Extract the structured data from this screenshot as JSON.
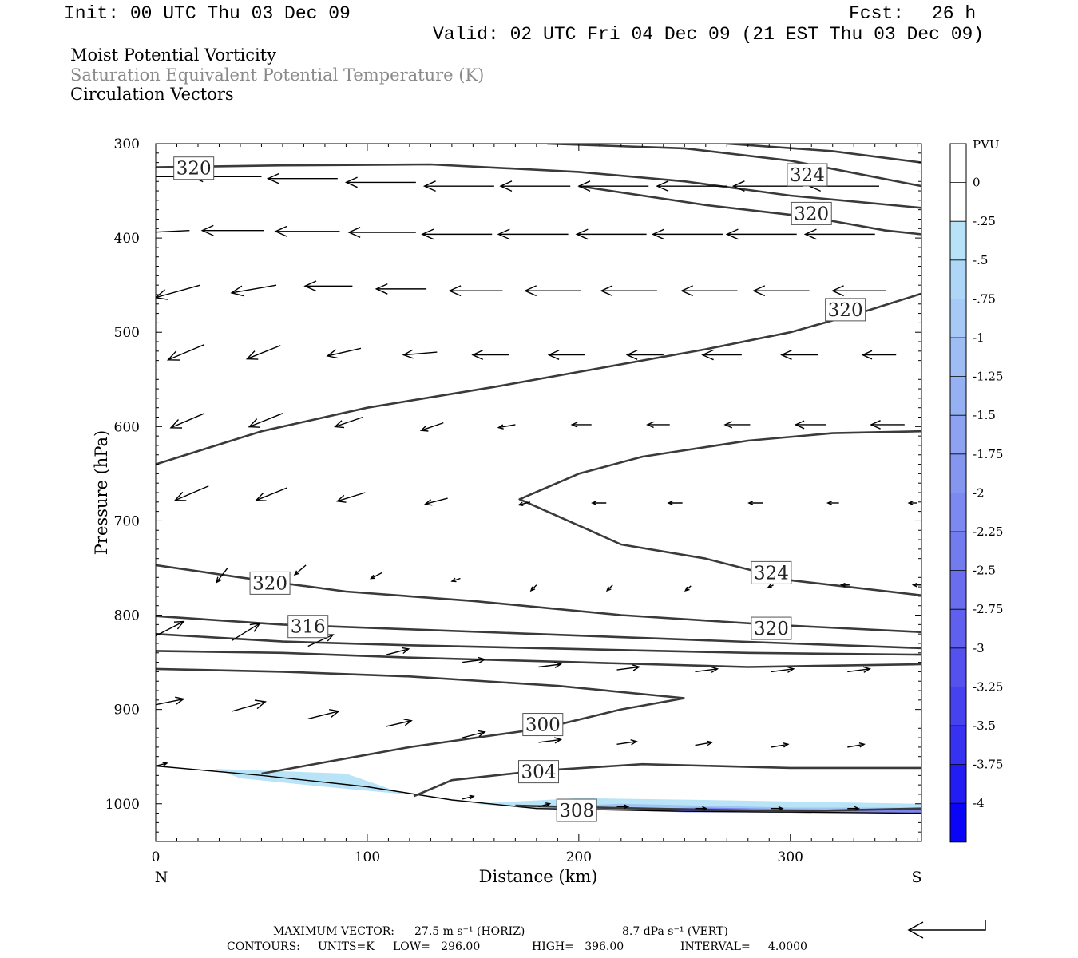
{
  "header": {
    "init": "Init: 00 UTC Thu 03 Dec 09",
    "fcst_label": "Fcst:",
    "fcst_value": "26 h",
    "valid": "Valid: 02 UTC Fri 04 Dec 09 (21 EST Thu 03 Dec 09)"
  },
  "titles": {
    "line1": "Moist Potential Vorticity",
    "line2": "Saturation Equivalent Potential Temperature (K)",
    "line3": "Circulation Vectors"
  },
  "colors": {
    "contour": "#3a3a3a",
    "pv_light": "#b9e4f7",
    "pv_mid": "#9fc4f2",
    "pv_dark": "#7d86ee",
    "frame": "#000000",
    "subtitle_gray": "#8a8a8a"
  },
  "chart_data": {
    "type": "cross-section",
    "xlabel": "Distance (km)",
    "ylabel": "Pressure (hPa)",
    "xlim": [
      0,
      362
    ],
    "ylim": [
      1040,
      300
    ],
    "y_reversed": true,
    "xticks": [
      "0",
      "100",
      "200",
      "300"
    ],
    "xtick_values": [
      0,
      100,
      200,
      300
    ],
    "yticks": [
      "300",
      "400",
      "500",
      "600",
      "700",
      "800",
      "900",
      "1000"
    ],
    "ytick_values": [
      300,
      400,
      500,
      600,
      700,
      800,
      900,
      1000
    ],
    "left_end_label": "N",
    "right_end_label": "S",
    "colorbar": {
      "title": "PVU",
      "labels": [
        "0",
        "-.25",
        "-.5",
        "-.75",
        "-1",
        "-1.25",
        "-1.5",
        "-1.75",
        "-2",
        "-2.25",
        "-2.5",
        "-2.75",
        "-3",
        "-3.25",
        "-3.5",
        "-3.75",
        "-4"
      ],
      "colors": [
        "#ffffff",
        "#ffffff",
        "#b8e2f7",
        "#aed6f6",
        "#a6caf5",
        "#9dbdf4",
        "#95b0f3",
        "#8da3f2",
        "#8596f1",
        "#7c89f0",
        "#737cef",
        "#6a6eee",
        "#6060ee",
        "#5451ef",
        "#4742f0",
        "#3731f1",
        "#221df4",
        "#0a04f8"
      ]
    },
    "terrain": [
      [
        0,
        960
      ],
      [
        50,
        970
      ],
      [
        100,
        982
      ],
      [
        140,
        996
      ],
      [
        180,
        1005
      ],
      [
        250,
        1008
      ],
      [
        362,
        1010
      ]
    ],
    "contours": [
      {
        "label": "320",
        "label_at": [
          18,
          326
        ],
        "points": [
          [
            0,
            325
          ],
          [
            60,
            323
          ],
          [
            130,
            322
          ],
          [
            200,
            330
          ],
          [
            250,
            340
          ],
          [
            300,
            355
          ],
          [
            362,
            368
          ]
        ]
      },
      {
        "label": "324",
        "label_at": [
          308,
          333
        ],
        "points": [
          [
            185,
            300
          ],
          [
            250,
            305
          ],
          [
            300,
            318
          ],
          [
            362,
            345
          ]
        ]
      },
      {
        "label": "",
        "points": [
          [
            270,
            300
          ],
          [
            320,
            308
          ],
          [
            362,
            320
          ]
        ]
      },
      {
        "label": "320",
        "label_at": [
          310,
          374
        ],
        "points": [
          [
            200,
            345
          ],
          [
            260,
            365
          ],
          [
            310,
            378
          ],
          [
            345,
            392
          ],
          [
            362,
            396
          ]
        ]
      },
      {
        "label": "320",
        "label_at": [
          326,
          476
        ],
        "points": [
          [
            0,
            640
          ],
          [
            50,
            605
          ],
          [
            100,
            580
          ],
          [
            160,
            558
          ],
          [
            210,
            538
          ],
          [
            260,
            518
          ],
          [
            300,
            500
          ],
          [
            335,
            478
          ],
          [
            362,
            459
          ]
        ]
      },
      {
        "label": "324",
        "label_at": [
          291,
          755
        ],
        "points": [
          [
            362,
            605
          ],
          [
            320,
            607
          ],
          [
            280,
            615
          ],
          [
            230,
            632
          ],
          [
            200,
            650
          ],
          [
            172,
            677
          ],
          [
            205,
            710
          ],
          [
            220,
            725
          ],
          [
            260,
            740
          ],
          [
            300,
            763
          ],
          [
            362,
            779
          ]
        ]
      },
      {
        "label": "320",
        "label_at": [
          54,
          766
        ],
        "points": [
          [
            0,
            747
          ],
          [
            40,
            760
          ],
          [
            90,
            775
          ],
          [
            150,
            785
          ],
          [
            220,
            800
          ],
          [
            290,
            810
          ],
          [
            362,
            818
          ]
        ]
      },
      {
        "label": "316",
        "label_at": [
          72,
          812
        ],
        "points": [
          [
            0,
            801
          ],
          [
            60,
            810
          ],
          [
            120,
            815
          ],
          [
            180,
            820
          ],
          [
            240,
            825
          ],
          [
            300,
            830
          ],
          [
            362,
            835
          ]
        ]
      },
      {
        "label": "320",
        "label_at": [
          291,
          814
        ],
        "points": [
          [
            0,
            820
          ],
          [
            60,
            828
          ],
          [
            120,
            832
          ],
          [
            200,
            836
          ],
          [
            280,
            840
          ],
          [
            362,
            842
          ]
        ]
      },
      {
        "label": "",
        "points": [
          [
            0,
            838
          ],
          [
            60,
            840
          ],
          [
            120,
            845
          ],
          [
            200,
            850
          ],
          [
            280,
            855
          ],
          [
            362,
            852
          ]
        ]
      },
      {
        "label": "",
        "points": [
          [
            0,
            857
          ],
          [
            60,
            860
          ],
          [
            120,
            865
          ],
          [
            190,
            875
          ],
          [
            250,
            888
          ]
        ]
      },
      {
        "label": "300",
        "label_at": [
          183,
          916
        ],
        "points": [
          [
            50,
            968
          ],
          [
            120,
            940
          ],
          [
            183,
            920
          ],
          [
            220,
            900
          ],
          [
            250,
            888
          ]
        ]
      },
      {
        "label": "304",
        "label_at": [
          181,
          966
        ],
        "points": [
          [
            122,
            992
          ],
          [
            140,
            975
          ],
          [
            181,
            965
          ],
          [
            230,
            958
          ],
          [
            300,
            962
          ],
          [
            362,
            962
          ]
        ]
      },
      {
        "label": "308",
        "label_at": [
          199,
          1007
        ],
        "points": [
          [
            170,
            1002
          ],
          [
            230,
            1005
          ],
          [
            300,
            1008
          ],
          [
            362,
            1005
          ]
        ]
      }
    ],
    "pv_shading": [
      {
        "level": "-.5",
        "points": [
          [
            28,
            963
          ],
          [
            90,
            968
          ],
          [
            118,
            990
          ],
          [
            80,
            982
          ],
          [
            40,
            973
          ]
        ]
      },
      {
        "level": "-.5",
        "points": [
          [
            150,
            1000
          ],
          [
            200,
            994
          ],
          [
            260,
            996
          ],
          [
            362,
            1000
          ],
          [
            362,
            1010
          ],
          [
            250,
            1008
          ],
          [
            180,
            1005
          ]
        ]
      },
      {
        "level": "-1",
        "points": [
          [
            170,
            1004
          ],
          [
            220,
            1000
          ],
          [
            300,
            1004
          ],
          [
            362,
            1004
          ],
          [
            362,
            1010
          ],
          [
            250,
            1008
          ],
          [
            190,
            1006
          ]
        ]
      },
      {
        "level": "-2",
        "points": [
          [
            200,
            1006
          ],
          [
            260,
            1004
          ],
          [
            340,
            1007
          ],
          [
            362,
            1007
          ],
          [
            362,
            1010
          ],
          [
            250,
            1009
          ]
        ]
      }
    ],
    "vectors": [
      {
        "x": 12,
        "p": 335,
        "u": -25,
        "w": 0
      },
      {
        "x": 50,
        "p": 335,
        "u": -25,
        "w": 0
      },
      {
        "x": 86,
        "p": 337,
        "u": -25,
        "w": 0
      },
      {
        "x": 123,
        "p": 341,
        "u": -25,
        "w": 0
      },
      {
        "x": 160,
        "p": 345,
        "u": -25,
        "w": 0
      },
      {
        "x": 196,
        "p": 345,
        "u": -25,
        "w": 0
      },
      {
        "x": 233,
        "p": 345,
        "u": -25,
        "w": 0
      },
      {
        "x": 270,
        "p": 345,
        "u": -25,
        "w": 0
      },
      {
        "x": 306,
        "p": 345,
        "u": -25,
        "w": 0
      },
      {
        "x": 342,
        "p": 345,
        "u": -25,
        "w": 0
      },
      {
        "x": 16,
        "p": 392,
        "u": -22,
        "w": 0.3
      },
      {
        "x": 51,
        "p": 392,
        "u": -22,
        "w": 0
      },
      {
        "x": 87,
        "p": 393,
        "u": -23,
        "w": 0
      },
      {
        "x": 123,
        "p": 394,
        "u": -24,
        "w": 0
      },
      {
        "x": 159,
        "p": 396,
        "u": -25,
        "w": 0
      },
      {
        "x": 195,
        "p": 396,
        "u": -25,
        "w": 0
      },
      {
        "x": 232,
        "p": 396,
        "u": -25,
        "w": 0
      },
      {
        "x": 268,
        "p": 396,
        "u": -25,
        "w": 0
      },
      {
        "x": 303,
        "p": 396,
        "u": -25,
        "w": 0
      },
      {
        "x": 340,
        "p": 396,
        "u": -25,
        "w": 0
      },
      {
        "x": 21,
        "p": 450,
        "u": -16,
        "w": 1.3
      },
      {
        "x": 57,
        "p": 450,
        "u": -16,
        "w": 0.8
      },
      {
        "x": 93,
        "p": 451,
        "u": -17,
        "w": 0
      },
      {
        "x": 128,
        "p": 454,
        "u": -18,
        "w": 0
      },
      {
        "x": 164,
        "p": 456,
        "u": -19,
        "w": 0
      },
      {
        "x": 201,
        "p": 456,
        "u": -20,
        "w": 0
      },
      {
        "x": 237,
        "p": 456,
        "u": -20,
        "w": 0
      },
      {
        "x": 275,
        "p": 456,
        "u": -20,
        "w": 0
      },
      {
        "x": 309,
        "p": 456,
        "u": -20,
        "w": 0
      },
      {
        "x": 345,
        "p": 456,
        "u": -19,
        "w": 0
      },
      {
        "x": 23,
        "p": 513,
        "u": -13,
        "w": 1.6
      },
      {
        "x": 59,
        "p": 514,
        "u": -12,
        "w": 1.4
      },
      {
        "x": 97,
        "p": 517,
        "u": -12,
        "w": 0.8
      },
      {
        "x": 133,
        "p": 521,
        "u": -12,
        "w": 0.3
      },
      {
        "x": 167,
        "p": 524,
        "u": -13,
        "w": 0
      },
      {
        "x": 203,
        "p": 524,
        "u": -13,
        "w": 0
      },
      {
        "x": 240,
        "p": 524,
        "u": -13,
        "w": 0
      },
      {
        "x": 277,
        "p": 524,
        "u": -14,
        "w": 0
      },
      {
        "x": 313,
        "p": 524,
        "u": -13,
        "w": 0
      },
      {
        "x": 350,
        "p": 524,
        "u": -12,
        "w": 0
      },
      {
        "x": 23,
        "p": 586,
        "u": -12,
        "w": 1.5
      },
      {
        "x": 60,
        "p": 586,
        "u": -12,
        "w": 1.4
      },
      {
        "x": 98,
        "p": 590,
        "u": -10,
        "w": 1
      },
      {
        "x": 136,
        "p": 596,
        "u": -8,
        "w": 0.8
      },
      {
        "x": 170,
        "p": 598,
        "u": -6,
        "w": 0.3
      },
      {
        "x": 206,
        "p": 598,
        "u": -7,
        "w": 0
      },
      {
        "x": 243,
        "p": 598,
        "u": -8,
        "w": 0
      },
      {
        "x": 281,
        "p": 598,
        "u": -9,
        "w": 0
      },
      {
        "x": 317,
        "p": 598,
        "u": -11,
        "w": 0
      },
      {
        "x": 354,
        "p": 598,
        "u": -12,
        "w": 0
      },
      {
        "x": 25,
        "p": 663,
        "u": -12,
        "w": 1.5
      },
      {
        "x": 62,
        "p": 665,
        "u": -11,
        "w": 1.3
      },
      {
        "x": 99,
        "p": 670,
        "u": -10,
        "w": 0.9
      },
      {
        "x": 138,
        "p": 676,
        "u": -8,
        "w": 0.6
      },
      {
        "x": 177,
        "p": 680,
        "u": -4,
        "w": 0.3
      },
      {
        "x": 213,
        "p": 681,
        "u": -5,
        "w": 0
      },
      {
        "x": 249,
        "p": 681,
        "u": -5,
        "w": 0
      },
      {
        "x": 287,
        "p": 681,
        "u": -5,
        "w": 0
      },
      {
        "x": 323,
        "p": 681,
        "u": -4,
        "w": 0
      },
      {
        "x": 360,
        "p": 681,
        "u": -3,
        "w": 0
      },
      {
        "x": 34,
        "p": 750,
        "u": -4,
        "w": 1.5
      },
      {
        "x": 71,
        "p": 747,
        "u": -4,
        "w": 1
      },
      {
        "x": 107,
        "p": 755,
        "u": -4,
        "w": 0.6
      },
      {
        "x": 144,
        "p": 761,
        "u": -3,
        "w": 0.3
      },
      {
        "x": 180,
        "p": 768,
        "u": -2,
        "w": 0.6
      },
      {
        "x": 216,
        "p": 768,
        "u": -2,
        "w": 0.6
      },
      {
        "x": 253,
        "p": 769,
        "u": -2,
        "w": 0.5
      },
      {
        "x": 292,
        "p": 768,
        "u": -2,
        "w": 0.3
      },
      {
        "x": 328,
        "p": 768,
        "u": -3,
        "w": 0
      },
      {
        "x": 362,
        "p": 768,
        "u": -3,
        "w": 0
      },
      {
        "x": 0,
        "p": 822,
        "u": 10,
        "w": -1.5
      },
      {
        "x": 36,
        "p": 827,
        "u": 10,
        "w": -1.8
      },
      {
        "x": 72,
        "p": 833,
        "u": 9,
        "w": -1.2
      },
      {
        "x": 109,
        "p": 842,
        "u": 8,
        "w": -0.6
      },
      {
        "x": 145,
        "p": 850,
        "u": 8,
        "w": -0.3
      },
      {
        "x": 181,
        "p": 855,
        "u": 8,
        "w": -0.3
      },
      {
        "x": 218,
        "p": 858,
        "u": 8,
        "w": -0.3
      },
      {
        "x": 255,
        "p": 860,
        "u": 8,
        "w": -0.3
      },
      {
        "x": 291,
        "p": 860,
        "u": 8,
        "w": -0.3
      },
      {
        "x": 327,
        "p": 860,
        "u": 8,
        "w": -0.3
      },
      {
        "x": 0,
        "p": 895,
        "u": 10,
        "w": -0.6
      },
      {
        "x": 36,
        "p": 902,
        "u": 12,
        "w": -1
      },
      {
        "x": 72,
        "p": 910,
        "u": 11,
        "w": -0.8
      },
      {
        "x": 109,
        "p": 918,
        "u": 9,
        "w": -0.6
      },
      {
        "x": 145,
        "p": 930,
        "u": 8,
        "w": -0.6
      },
      {
        "x": 181,
        "p": 935,
        "u": 8,
        "w": -0.3
      },
      {
        "x": 218,
        "p": 937,
        "u": 7,
        "w": -0.3
      },
      {
        "x": 255,
        "p": 938,
        "u": 6,
        "w": -0.3
      },
      {
        "x": 291,
        "p": 940,
        "u": 6,
        "w": -0.3
      },
      {
        "x": 327,
        "p": 940,
        "u": 6,
        "w": -0.3
      },
      {
        "x": 0,
        "p": 960,
        "u": 4,
        "w": -0.3
      },
      {
        "x": 145,
        "p": 995,
        "u": 4,
        "w": -0.3
      },
      {
        "x": 181,
        "p": 1003,
        "u": 4,
        "w": -0.3
      },
      {
        "x": 218,
        "p": 1003,
        "u": 4,
        "w": 0
      },
      {
        "x": 255,
        "p": 1005,
        "u": 4,
        "w": 0
      },
      {
        "x": 291,
        "p": 1005,
        "u": 4,
        "w": 0
      },
      {
        "x": 327,
        "p": 1005,
        "u": 4,
        "w": 0
      }
    ]
  },
  "footer": {
    "max_vector_label": "MAXIMUM VECTOR:",
    "max_vector_horiz": "27.5 m s⁻¹ (HORIZ)",
    "max_vector_vert": "8.7 dPa s⁻¹ (VERT)",
    "contours_label": "CONTOURS:",
    "units": "UNITS=K",
    "low": "LOW=   296.00",
    "high": "HIGH=   396.00",
    "interval": "INTERVAL=     4.0000"
  }
}
